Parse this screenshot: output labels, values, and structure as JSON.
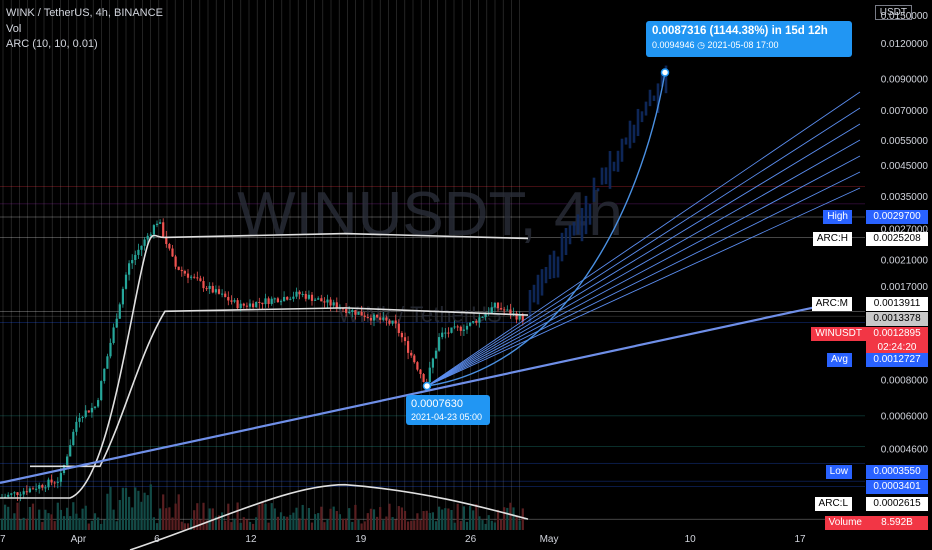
{
  "header": {
    "symbol_line": "WINK / TetherUS, 4h, BINANCE",
    "vol_label": "Vol",
    "arc_label": "ARC (10, 10, 0.01)",
    "watermark": "WINUSDT, 4h",
    "watermark_name": "WINk / TetherUS"
  },
  "axis": {
    "currency_button": "USDT",
    "price_ticks": [
      "0.0150000",
      "0.0120000",
      "0.0090000",
      "0.0070000",
      "0.0055000",
      "0.0045000",
      "0.0035000",
      "0.0027000",
      "0.0021000",
      "0.0017000",
      "0.0008000",
      "0.0006000",
      "0.0004600"
    ],
    "time_ticks": [
      "27",
      "Apr",
      "6",
      "12",
      "19",
      "26",
      "May",
      "10",
      "17"
    ]
  },
  "price_labels": {
    "high": {
      "name": "High",
      "value": "0.0029700"
    },
    "arc_h": {
      "name": "ARC:H",
      "value": "0.0025208"
    },
    "arc_m": {
      "name": "ARC:M",
      "value": "0.0013911"
    },
    "last_gray": {
      "value": "0.0013378"
    },
    "current": {
      "name": "WINUSDT",
      "value": "0.0012895",
      "countdown": "02:24:20"
    },
    "avg": {
      "name": "Avg",
      "value": "0.0012727"
    },
    "low": {
      "name": "Low",
      "value": "0.0003550"
    },
    "blue_mark": {
      "value": "0.0003401"
    },
    "arc_l": {
      "name": "ARC:L",
      "value": "0.0002615"
    },
    "volume": {
      "name": "Volume",
      "value": "8.592B"
    }
  },
  "callouts": {
    "target": {
      "line1": "0.0087316 (1144.38%) in 15d 12h",
      "line2": "0.0094946",
      "line2_time": "2021-05-08  17:00"
    },
    "low_point": {
      "line1": "0.0007630",
      "line2": "2021-04-23 05:00"
    }
  },
  "colors": {
    "up": "#26a69a",
    "down": "#ef5350",
    "projection": "#2962ff",
    "fan": "#5b8def",
    "arc": "#e0e0e0",
    "grid": "#ffffff"
  },
  "chart_data": {
    "type": "candlestick",
    "title": "WINK / TetherUS, 4h, BINANCE",
    "y_scale": "log",
    "ylim": [
      0.00022,
      0.016
    ],
    "xlim_dates": [
      "2021-03-26",
      "2021-05-19"
    ],
    "key_points": [
      {
        "date": "2021-04-06",
        "price": 0.00297,
        "label": "High"
      },
      {
        "date": "2021-04-23 05:00",
        "price": 0.000763,
        "label": "Low point"
      },
      {
        "date": "2021-05-08 17:00",
        "price": 0.0094946,
        "label": "Projection target"
      }
    ],
    "levels": [
      {
        "name": "ARC:H",
        "price": 0.0025208
      },
      {
        "name": "ARC:M",
        "price": 0.0013911
      },
      {
        "name": "WINUSDT",
        "price": 0.0012895
      },
      {
        "name": "Avg",
        "price": 0.0012727
      },
      {
        "name": "Low",
        "price": 0.000355
      },
      {
        "name": "ARC:L",
        "price": 0.0002615
      }
    ],
    "volume_last": "8.592B"
  }
}
